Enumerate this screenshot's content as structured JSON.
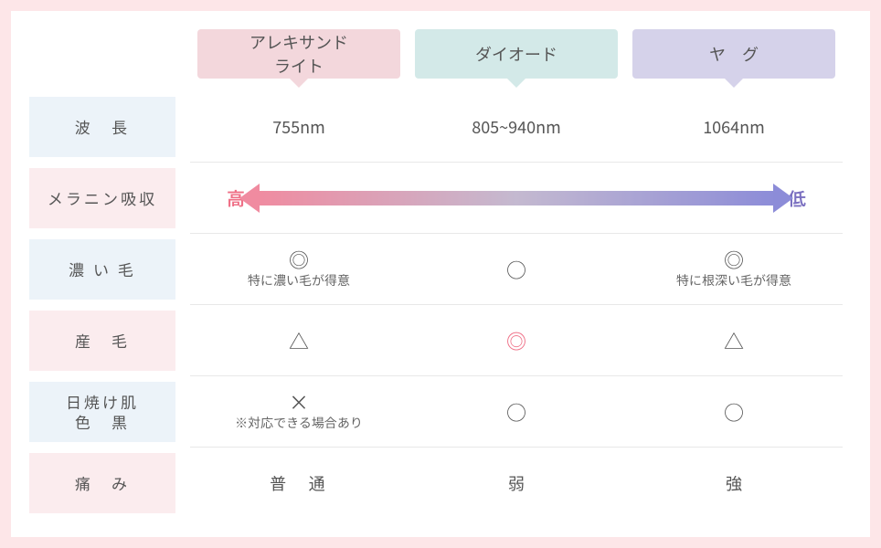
{
  "colors": {
    "outer_bg": "#fde6e8",
    "col_header_1": "#f3d7dc",
    "col_header_2": "#d3e9e8",
    "col_header_3": "#d5d2ea",
    "row_blue": "#ecf3f9",
    "row_pink": "#fbecee",
    "accent_pink": "#ef6f86",
    "accent_purple": "#7a6fc0",
    "grad_start": "#f08ba0",
    "grad_mid": "#c4b9d0",
    "grad_end": "#8c8cd8",
    "divider": "#e8e8e8",
    "text": "#555555",
    "subtext": "#666666"
  },
  "columns": [
    {
      "label": "アレキサンド\nライト"
    },
    {
      "label": "ダイオード"
    },
    {
      "label": "ヤ　グ"
    }
  ],
  "rows": [
    {
      "key": "wavelength",
      "label": "波　長",
      "color": "blue"
    },
    {
      "key": "melanin",
      "label": "メラニン吸収",
      "color": "pink"
    },
    {
      "key": "thick_hair",
      "label": "濃 い 毛",
      "color": "blue"
    },
    {
      "key": "fine_hair",
      "label": "産　毛",
      "color": "pink"
    },
    {
      "key": "tanned",
      "label": "日焼け肌\n色　黒",
      "color": "blue"
    },
    {
      "key": "pain",
      "label": "痛　み",
      "color": "pink"
    }
  ],
  "cells": {
    "wavelength": [
      "755nm",
      "805~940nm",
      "1064nm"
    ],
    "melanin_arrow": {
      "left": "高",
      "right": "低"
    },
    "thick_hair": [
      {
        "symbol": "◎",
        "sub": "特に濃い毛が得意"
      },
      {
        "symbol": "○"
      },
      {
        "symbol": "◎",
        "sub": "特に根深い毛が得意"
      }
    ],
    "fine_hair": [
      {
        "symbol": "△"
      },
      {
        "symbol": "◎",
        "highlight": true
      },
      {
        "symbol": "△"
      }
    ],
    "tanned": [
      {
        "symbol": "×",
        "sub": "※対応できる場合あり"
      },
      {
        "symbol": "○"
      },
      {
        "symbol": "○"
      }
    ],
    "pain": [
      "普　通",
      "弱",
      "強"
    ]
  }
}
